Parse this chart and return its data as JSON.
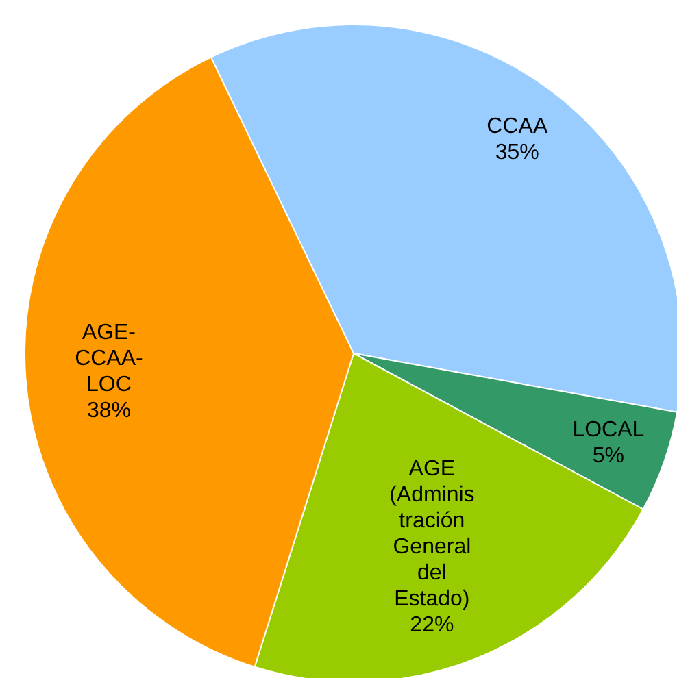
{
  "chart_data": {
    "type": "pie",
    "categories": [
      "CCAA",
      "LOCAL",
      "AGE (Administración General del Estado)",
      "AGE-CCAA-LOC"
    ],
    "values": [
      35,
      5,
      22,
      38
    ],
    "colors": [
      "#99ccff",
      "#339966",
      "#99cc00",
      "#ff9900"
    ],
    "value_labels": [
      "35%",
      "5%",
      "22%",
      "38%"
    ]
  }
}
